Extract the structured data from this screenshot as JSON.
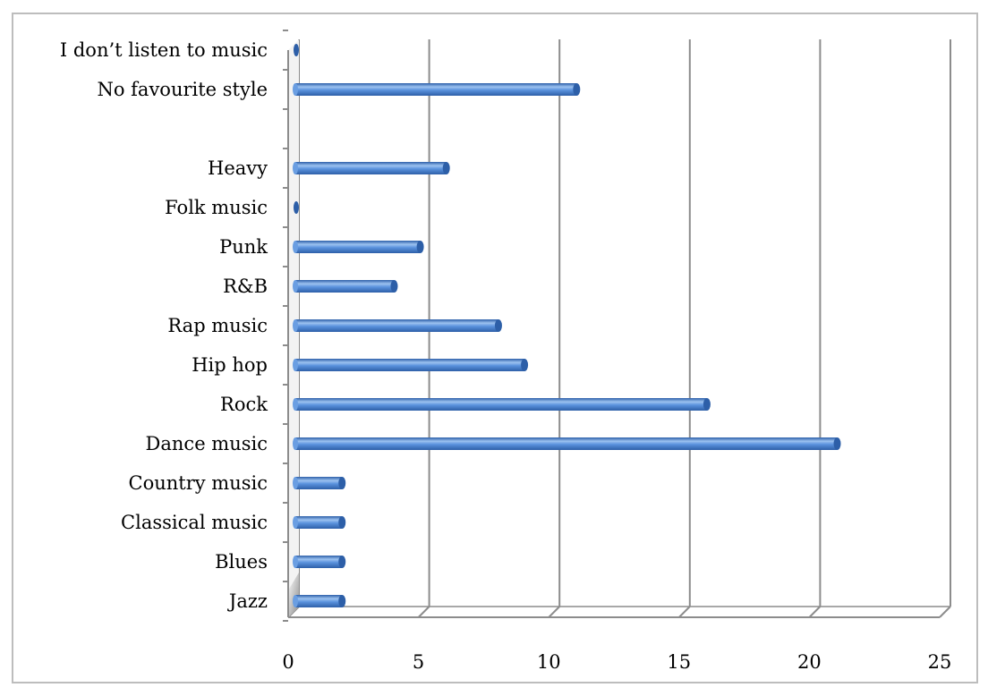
{
  "chart_data": {
    "type": "bar",
    "orientation": "horizontal",
    "style": "3d-cylinder",
    "title": "",
    "xlabel": "",
    "ylabel": "",
    "categories": [
      "I don’t listen to music",
      "No favourite style",
      "",
      "Heavy",
      "Folk music",
      "Punk",
      "R&B",
      "Rap music",
      "Hip hop",
      "Rock",
      "Dance music",
      "Country music",
      "Classical music",
      "Blues",
      "Jazz"
    ],
    "values": [
      0,
      11,
      0,
      6,
      0,
      5,
      4,
      8,
      9,
      16,
      21,
      2,
      2,
      2,
      2
    ],
    "xlim": [
      0,
      25
    ],
    "xticks": [
      "0",
      "5",
      "10",
      "15",
      "20",
      "25"
    ],
    "grid": true,
    "legend": "none",
    "colors": {
      "bar": "#4f86d6",
      "bar_highlight": "#9cc2f0",
      "bar_shadow": "#2d5fa8",
      "gridline": "#8c8c8c",
      "wall": "#d9d9d9"
    }
  }
}
